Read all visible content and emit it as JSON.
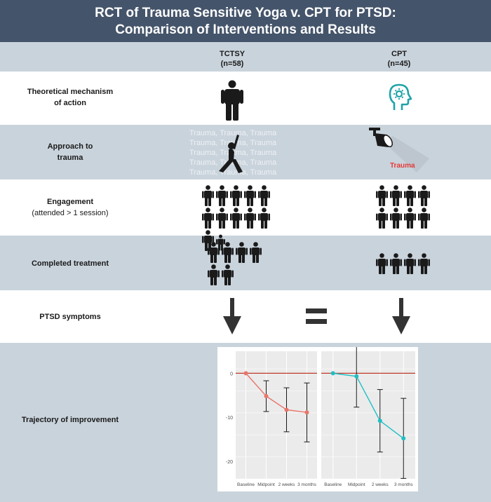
{
  "header": {
    "title_line1": "RCT of Trauma Sensitive Yoga v. CPT for PTSD:",
    "title_line2": "Comparison of Interventions and Results"
  },
  "columns": {
    "tctsy": {
      "name": "TCTSY",
      "n": "(n=58)"
    },
    "cpt": {
      "name": "CPT",
      "n": "(n=45)"
    }
  },
  "rows": {
    "mechanism": {
      "line1": "Theoretical mechanism",
      "line2": "of action"
    },
    "approach": {
      "line1": "Approach to",
      "line2": "trauma",
      "tctsy_text": [
        "Trauma, Trauma, Trauma",
        "Trauma, Trauma, Trauma",
        "Trauma, Trauma, Trauma",
        "Trauma, Trauma, Trauma",
        "Trauma, Trauma, Trauma"
      ],
      "cpt_label": "Trauma"
    },
    "engagement": {
      "line1": "Engagement",
      "line2": "(attended > 1 session)"
    },
    "completed": {
      "line1": "Completed treatment"
    },
    "ptsd": {
      "line1": "PTSD symptoms"
    },
    "trajectory": {
      "line1": "Trajectory of improvement"
    }
  },
  "colors": {
    "header": "#44546a",
    "band": "#c9d3dc",
    "tctsy_line": "#e8756a",
    "cpt_line": "#1fbfc4",
    "reference_line": "#c0392b",
    "trauma_label": "#e53935"
  },
  "icons": {
    "mechanism_tctsy": "standing-person-icon",
    "mechanism_cpt": "head-with-brain-icon",
    "approach_tctsy": "yoga-pose-icon",
    "approach_cpt": "spotlight-icon",
    "ptsd_arrow": "down-arrow-icon",
    "equals": "equals-icon"
  },
  "chart_data": {
    "type": "line",
    "x": [
      "Baseline",
      "Midpoint",
      "2 weeks",
      "3 months"
    ],
    "ylim": [
      -24,
      5
    ],
    "yticks": [
      0,
      -10,
      -20
    ],
    "ytick_labels": [
      "0",
      "-10",
      "-20"
    ],
    "reference_line": 0,
    "grid": true,
    "series": [
      {
        "values": [
          0,
          -5.2,
          -8.3,
          -8.9
        ],
        "err_low": [
          0,
          -8.7,
          -13.3,
          -15.6
        ],
        "err_high": [
          0,
          -1.7,
          -3.3,
          -2.2
        ]
      },
      {
        "values": [
          0,
          -0.7,
          -10.8,
          -14.8
        ],
        "err_low": [
          0,
          -7.7,
          -17.9,
          -23.9
        ],
        "err_high": [
          0,
          6.3,
          -3.7,
          -5.7
        ]
      }
    ]
  }
}
